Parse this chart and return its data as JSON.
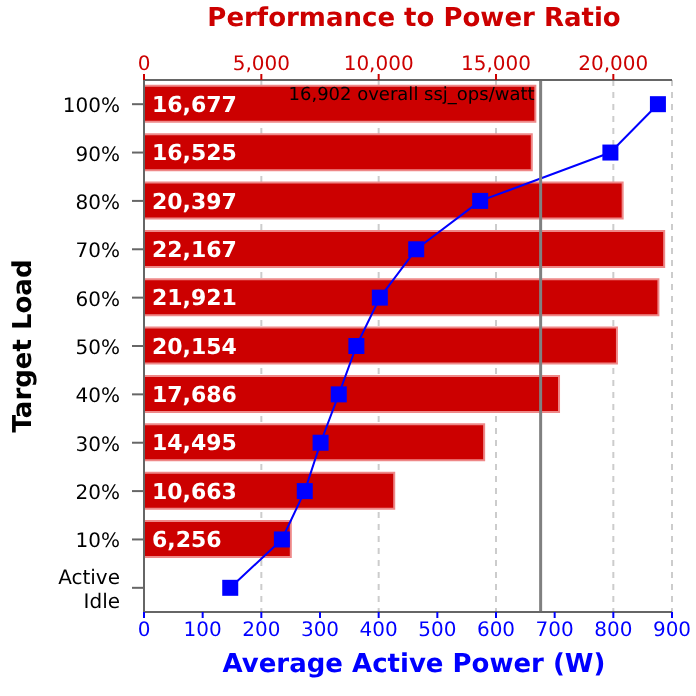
{
  "chart_data": {
    "type": "bar",
    "orientation": "horizontal",
    "x2label": "Performance to Power Ratio",
    "xlabel": "Average Active Power (W)",
    "ylabel": "Target Load",
    "categories": [
      "100%",
      "90%",
      "80%",
      "70%",
      "60%",
      "50%",
      "40%",
      "30%",
      "20%",
      "10%",
      "Active Idle"
    ],
    "series": [
      {
        "axis": "x2",
        "color": "#cc0000",
        "values": [
          16677,
          16525,
          20397,
          22167,
          21921,
          20154,
          17686,
          14495,
          10663,
          6256,
          null
        ],
        "value_labels": [
          "16,677",
          "16,525",
          "20,397",
          "22,167",
          "21,921",
          "20,154",
          "17,686",
          "14,495",
          "10,663",
          "6,256",
          null
        ]
      },
      {
        "type": "line",
        "color": "#0000ff",
        "marker": "square",
        "values": [
          876,
          795,
          573,
          464,
          402,
          362,
          332,
          301,
          274,
          235,
          147
        ]
      }
    ],
    "xlim": [
      0,
      900
    ],
    "xticks": [
      0,
      100,
      200,
      300,
      400,
      500,
      600,
      700,
      800,
      900
    ],
    "x2lim": [
      0,
      22500
    ],
    "x2ticks": [
      {
        "value": 0,
        "label": "0"
      },
      {
        "value": 5000,
        "label": "5,000"
      },
      {
        "value": 10000,
        "label": "10,000"
      },
      {
        "value": 15000,
        "label": "15,000"
      },
      {
        "value": 20000,
        "label": "20,000"
      }
    ],
    "ref_lines": [
      {
        "axis": "x2",
        "value": 16902,
        "label": "16,902 overall ssj_ops/watt",
        "color": "#808080"
      }
    ],
    "grid": "x"
  }
}
